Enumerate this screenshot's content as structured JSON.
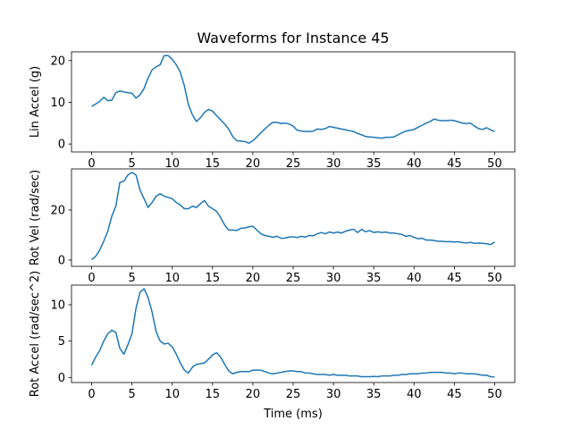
{
  "chart_data": [
    {
      "type": "line",
      "title": "Waveforms for Instance 45",
      "ylabel": "Lin Accel (g)",
      "color": "#1f77b4",
      "x": [
        0,
        0.5,
        1,
        1.5,
        2,
        2.5,
        3,
        3.5,
        4,
        4.5,
        5,
        5.5,
        6,
        6.5,
        7,
        7.5,
        8,
        8.5,
        9,
        9.5,
        10,
        10.5,
        11,
        11.5,
        12,
        12.5,
        13,
        13.5,
        14,
        14.5,
        15,
        15.5,
        16,
        16.5,
        17,
        17.5,
        18,
        18.5,
        19,
        19.5,
        20,
        20.5,
        21,
        21.5,
        22,
        22.5,
        23,
        23.5,
        24,
        24.5,
        25,
        25.5,
        26,
        26.5,
        27,
        27.5,
        28,
        28.5,
        29,
        29.5,
        30,
        30.5,
        31,
        31.5,
        32,
        32.5,
        33,
        33.5,
        34,
        34.5,
        35,
        35.5,
        36,
        36.5,
        37,
        37.5,
        38,
        38.5,
        39,
        39.5,
        40,
        40.5,
        41,
        41.5,
        42,
        42.5,
        43,
        43.5,
        44,
        44.5,
        45,
        45.5,
        46,
        46.5,
        47,
        47.5,
        48,
        48.5,
        49,
        49.5,
        50
      ],
      "values": [
        9.0,
        9.6,
        10.2,
        11.2,
        10.4,
        10.5,
        12.3,
        12.7,
        12.5,
        12.3,
        12.2,
        11.0,
        11.8,
        13.3,
        15.8,
        17.8,
        18.5,
        19.0,
        21.2,
        21.2,
        20.3,
        19.0,
        17.2,
        14.0,
        9.5,
        7.0,
        5.4,
        6.3,
        7.6,
        8.3,
        7.9,
        6.8,
        5.8,
        4.8,
        3.6,
        1.8,
        0.8,
        0.7,
        0.6,
        0.2,
        0.8,
        1.7,
        2.7,
        3.6,
        4.5,
        5.2,
        5.2,
        4.9,
        5.0,
        4.8,
        4.3,
        3.3,
        3.1,
        3.0,
        3.0,
        3.1,
        3.6,
        3.5,
        3.7,
        4.2,
        4.0,
        3.8,
        3.6,
        3.4,
        3.2,
        3.0,
        2.5,
        2.2,
        1.8,
        1.7,
        1.6,
        1.5,
        1.4,
        1.6,
        1.6,
        1.7,
        2.2,
        2.7,
        3.1,
        3.3,
        3.5,
        4.0,
        4.5,
        5.0,
        5.4,
        6.0,
        5.7,
        5.6,
        5.6,
        5.7,
        5.6,
        5.3,
        5.0,
        4.9,
        5.0,
        4.3,
        3.7,
        3.5,
        3.9,
        3.4,
        3.0
      ],
      "xlim": [
        -2.5,
        52.5
      ],
      "ylim": [
        -1.9,
        22.1
      ],
      "xticks": [
        0,
        5,
        10,
        15,
        20,
        25,
        30,
        35,
        40,
        45,
        50
      ],
      "yticks": [
        0,
        10,
        20
      ]
    },
    {
      "type": "line",
      "ylabel": "Rot Vel (rad/sec)",
      "color": "#1f77b4",
      "x": [
        0,
        0.5,
        1,
        1.5,
        2,
        2.5,
        3,
        3.5,
        4,
        4.5,
        5,
        5.5,
        6,
        6.5,
        7,
        7.5,
        8,
        8.5,
        9,
        9.5,
        10,
        10.5,
        11,
        11.5,
        12,
        12.5,
        13,
        13.5,
        14,
        14.5,
        15,
        15.5,
        16,
        16.5,
        17,
        17.5,
        18,
        18.5,
        19,
        19.5,
        20,
        20.5,
        21,
        21.5,
        22,
        22.5,
        23,
        23.5,
        24,
        24.5,
        25,
        25.5,
        26,
        26.5,
        27,
        27.5,
        28,
        28.5,
        29,
        29.5,
        30,
        30.5,
        31,
        31.5,
        32,
        32.5,
        33,
        33.5,
        34,
        34.5,
        35,
        35.5,
        36,
        36.5,
        37,
        37.5,
        38,
        38.5,
        39,
        39.5,
        40,
        40.5,
        41,
        41.5,
        42,
        42.5,
        43,
        43.5,
        44,
        44.5,
        45,
        45.5,
        46,
        46.5,
        47,
        47.5,
        48,
        48.5,
        49,
        49.5,
        50
      ],
      "values": [
        0.2,
        1.5,
        4,
        7.5,
        11.5,
        17.5,
        21.5,
        31,
        31.5,
        34,
        35,
        34,
        28,
        24.5,
        21,
        23,
        25.5,
        26.5,
        25.5,
        25,
        24.5,
        23,
        22,
        20.5,
        20.5,
        21.5,
        21,
        22.5,
        23.8,
        21.5,
        20.5,
        19.5,
        17,
        14,
        12,
        12,
        11.8,
        12.7,
        12.8,
        13.3,
        13.5,
        12,
        10.5,
        9.8,
        9.5,
        9.1,
        9.5,
        8.7,
        8.8,
        9.2,
        9.3,
        9.0,
        9.5,
        9.2,
        9.8,
        9.7,
        10.5,
        11,
        10.5,
        11.2,
        10.8,
        11.2,
        10.8,
        11.5,
        12,
        12.3,
        11,
        12.3,
        11.3,
        11.8,
        11,
        11.3,
        11,
        11.2,
        10.8,
        10.8,
        10.5,
        10.2,
        9.5,
        9.8,
        9.1,
        8.5,
        8.7,
        8,
        8,
        7.8,
        7.5,
        7.5,
        7.3,
        7.4,
        7.2,
        7.3,
        7.0,
        6.8,
        7.1,
        6.7,
        6.8,
        6.7,
        6.5,
        6.2,
        7.2
      ],
      "xlim": [
        -2.5,
        52.5
      ],
      "ylim": [
        -2.5,
        36.4
      ],
      "xticks": [
        0,
        5,
        10,
        15,
        20,
        25,
        30,
        35,
        40,
        45,
        50
      ],
      "yticks": [
        0,
        20
      ]
    },
    {
      "type": "line",
      "ylabel": "Rot Accel (rad/sec^2)",
      "xlabel": "Time (ms)",
      "color": "#1f77b4",
      "x": [
        0,
        0.5,
        1,
        1.5,
        2,
        2.5,
        3,
        3.5,
        4,
        4.5,
        5,
        5.5,
        6,
        6.5,
        7,
        7.5,
        8,
        8.5,
        9,
        9.5,
        10,
        10.5,
        11,
        11.5,
        12,
        12.5,
        13,
        13.5,
        14,
        14.5,
        15,
        15.5,
        16,
        16.5,
        17,
        17.5,
        18,
        18.5,
        19,
        19.5,
        20,
        20.5,
        21,
        21.5,
        22,
        22.5,
        23,
        23.5,
        24,
        24.5,
        25,
        25.5,
        26,
        26.5,
        27,
        27.5,
        28,
        28.5,
        29,
        29.5,
        30,
        30.5,
        31,
        31.5,
        32,
        32.5,
        33,
        33.5,
        34,
        34.5,
        35,
        35.5,
        36,
        36.5,
        37,
        37.5,
        38,
        38.5,
        39,
        39.5,
        40,
        40.5,
        41,
        41.5,
        42,
        42.5,
        43,
        43.5,
        44,
        44.5,
        45,
        45.5,
        46,
        46.5,
        47,
        47.5,
        48,
        48.5,
        49,
        49.5,
        50
      ],
      "values": [
        1.7,
        2.8,
        3.7,
        5,
        6,
        6.5,
        6.2,
        4,
        3.2,
        4.5,
        6,
        9.5,
        11.7,
        12.2,
        11,
        9,
        6.3,
        5,
        4.6,
        4.7,
        4.2,
        3.2,
        2,
        1,
        0.6,
        1.4,
        1.8,
        1.9,
        2,
        2.5,
        3.1,
        3.4,
        2.8,
        1.8,
        0.9,
        0.5,
        0.7,
        0.8,
        0.8,
        0.8,
        1.0,
        1.0,
        1.0,
        0.8,
        0.6,
        0.5,
        0.6,
        0.7,
        0.8,
        0.9,
        0.9,
        0.8,
        0.8,
        0.6,
        0.6,
        0.5,
        0.4,
        0.4,
        0.4,
        0.3,
        0.4,
        0.3,
        0.3,
        0.3,
        0.2,
        0.2,
        0.2,
        0.1,
        0.1,
        0.1,
        0.15,
        0.1,
        0.2,
        0.2,
        0.2,
        0.3,
        0.3,
        0.4,
        0.4,
        0.5,
        0.5,
        0.5,
        0.6,
        0.6,
        0.7,
        0.7,
        0.7,
        0.7,
        0.6,
        0.6,
        0.5,
        0.6,
        0.6,
        0.5,
        0.5,
        0.5,
        0.4,
        0.3,
        0.3,
        0.1,
        0.05
      ],
      "xlim": [
        -2.5,
        52.5
      ],
      "ylim": [
        -0.7,
        12.7
      ],
      "xticks": [
        0,
        5,
        10,
        15,
        20,
        25,
        30,
        35,
        40,
        45,
        50
      ],
      "yticks": [
        0,
        5,
        10
      ]
    }
  ]
}
